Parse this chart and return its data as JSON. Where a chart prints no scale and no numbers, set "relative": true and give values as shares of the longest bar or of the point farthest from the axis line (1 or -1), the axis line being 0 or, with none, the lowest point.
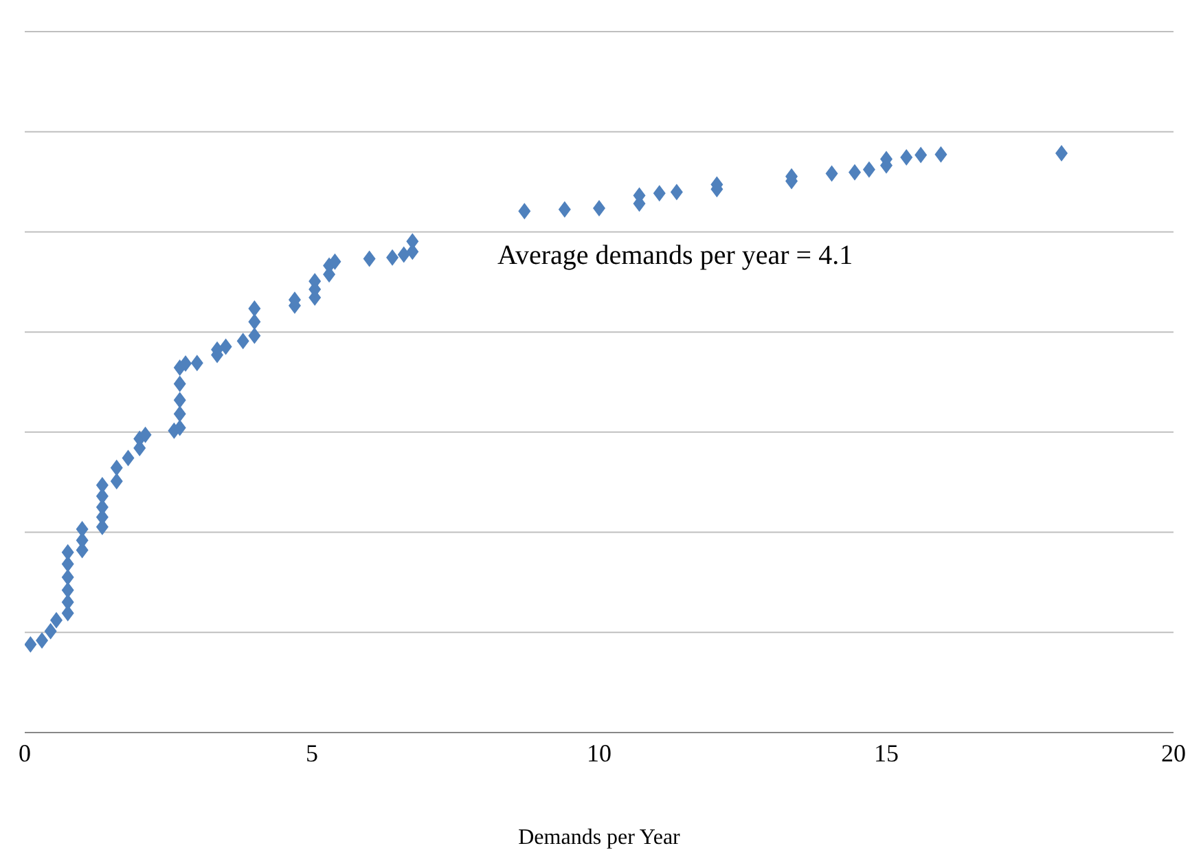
{
  "chart_data": {
    "type": "scatter",
    "xlabel": "Demands per Year",
    "annotations": [
      "Average demands per year = 4.1"
    ],
    "xlim": [
      0,
      20
    ],
    "xticks": [
      0,
      5,
      10,
      15,
      20
    ],
    "relative": true,
    "grid": "y",
    "marker": "diamond",
    "series": [
      {
        "color": "#4f81bd",
        "x": [
          0.1,
          0.3,
          0.45,
          0.55,
          0.75,
          0.75,
          0.75,
          0.75,
          0.75,
          0.75,
          1.0,
          1.0,
          1.0,
          1.35,
          1.35,
          1.35,
          1.35,
          1.35,
          1.6,
          1.6,
          1.8,
          2.0,
          2.0,
          2.1,
          2.6,
          2.7,
          2.7,
          2.7,
          2.7,
          2.7,
          2.8,
          3.0,
          3.35,
          3.35,
          3.5,
          3.8,
          4.0,
          4.0,
          4.0,
          4.7,
          4.7,
          5.05,
          5.05,
          5.05,
          5.3,
          5.3,
          5.4,
          6.0,
          6.4,
          6.6,
          6.75,
          6.75,
          8.7,
          9.4,
          10.0,
          10.7,
          10.7,
          11.05,
          11.35,
          12.05,
          12.05,
          13.35,
          13.35,
          14.05,
          14.45,
          14.7,
          15.0,
          15.0,
          15.35,
          15.6,
          15.95,
          18.05
        ],
        "values": [
          0.152,
          0.159,
          0.175,
          0.194,
          0.206,
          0.225,
          0.246,
          0.268,
          0.291,
          0.311,
          0.315,
          0.332,
          0.351,
          0.355,
          0.372,
          0.389,
          0.408,
          0.427,
          0.434,
          0.457,
          0.474,
          0.491,
          0.507,
          0.514,
          0.521,
          0.526,
          0.55,
          0.574,
          0.602,
          0.63,
          0.637,
          0.638,
          0.652,
          0.661,
          0.666,
          0.676,
          0.685,
          0.709,
          0.732,
          0.737,
          0.747,
          0.751,
          0.765,
          0.779,
          0.791,
          0.806,
          0.813,
          0.818,
          0.82,
          0.825,
          0.83,
          0.848,
          0.9,
          0.903,
          0.905,
          0.913,
          0.927,
          0.931,
          0.933,
          0.938,
          0.946,
          0.952,
          0.96,
          0.965,
          0.967,
          0.972,
          0.979,
          0.99,
          0.993,
          0.997,
          0.998,
          1
        ]
      }
    ]
  }
}
